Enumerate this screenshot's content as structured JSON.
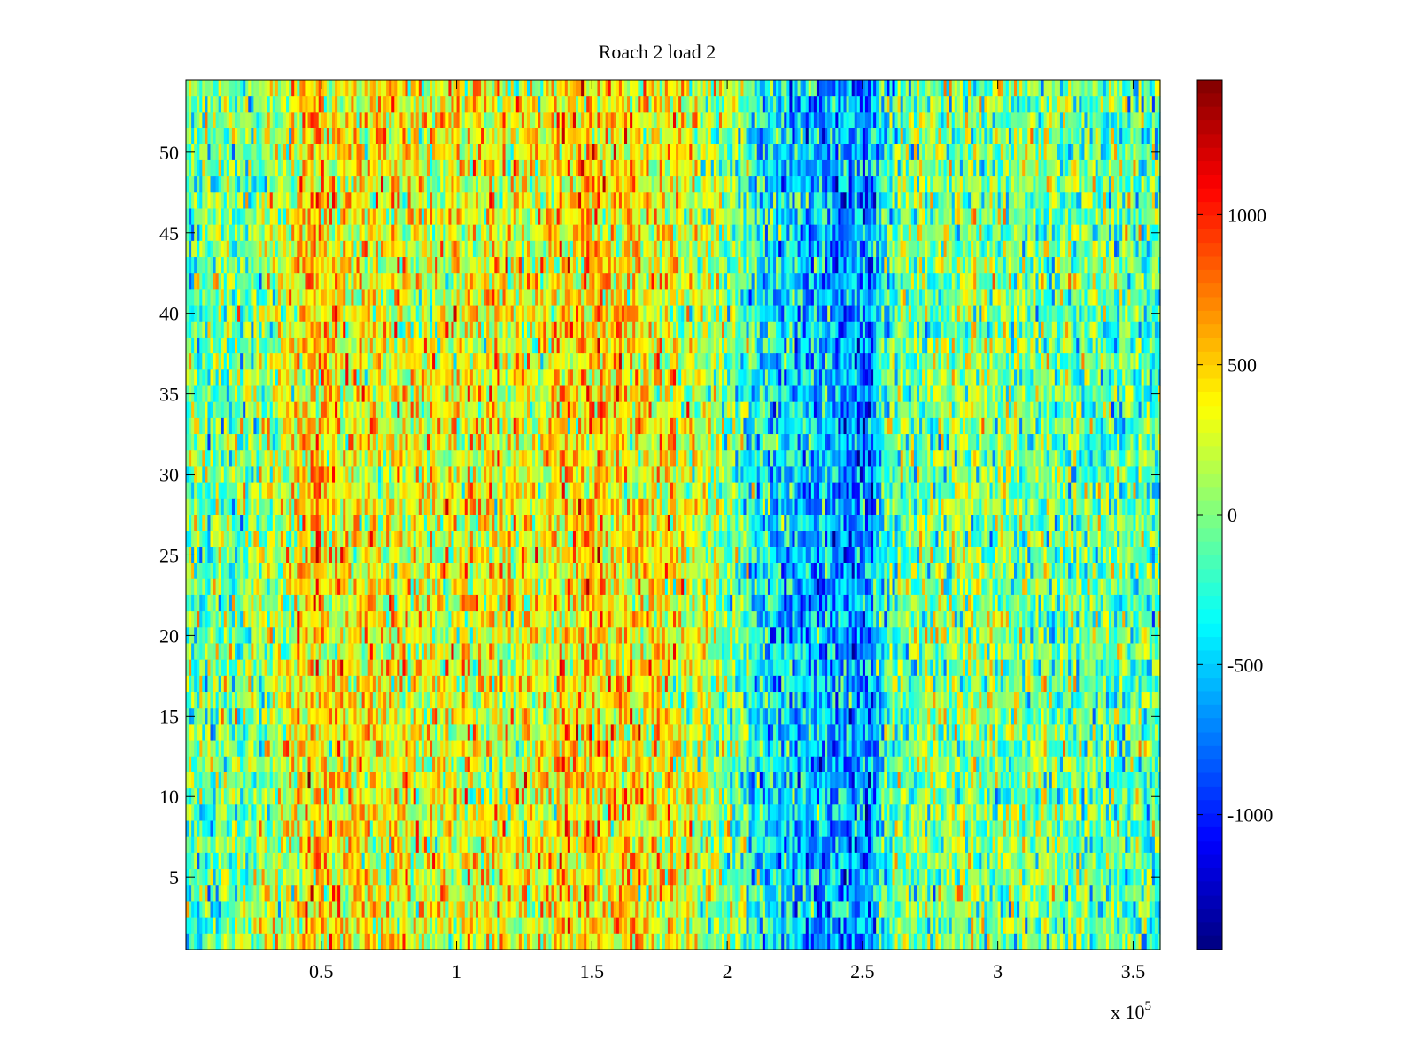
{
  "chart_data": {
    "type": "heatmap",
    "title": "Roach 2 load 2",
    "xlabel": "",
    "ylabel": "",
    "x_multiplier_label": "x 10",
    "x_multiplier_exponent": "5",
    "xlim": [
      0,
      3.6
    ],
    "x_scale": 100000,
    "ylim": [
      0.5,
      54.5
    ],
    "rows": 54,
    "columns": 360,
    "xticks": [
      0.5,
      1,
      1.5,
      2,
      2.5,
      3,
      3.5
    ],
    "xtick_labels": [
      "0.5",
      "1",
      "1.5",
      "2",
      "2.5",
      "3",
      "3.5"
    ],
    "yticks": [
      5,
      10,
      15,
      20,
      25,
      30,
      35,
      40,
      45,
      50
    ],
    "ytick_labels": [
      "5",
      "10",
      "15",
      "20",
      "25",
      "30",
      "35",
      "40",
      "45",
      "50"
    ],
    "colorbar": {
      "colormap": "jet",
      "clim": [
        -1450,
        1450
      ],
      "ticks": [
        1000,
        500,
        0,
        -500,
        -1000
      ],
      "tick_labels": [
        "1000",
        "500",
        "0",
        "-500",
        "-1000"
      ]
    },
    "column_profile": [
      {
        "x": 0.0,
        "mean": -120
      },
      {
        "x": 0.1,
        "mean": -60
      },
      {
        "x": 0.2,
        "mean": 0
      },
      {
        "x": 0.3,
        "mean": 80
      },
      {
        "x": 0.4,
        "mean": 260
      },
      {
        "x": 0.47,
        "mean": 560
      },
      {
        "x": 0.55,
        "mean": 380
      },
      {
        "x": 0.7,
        "mean": 330
      },
      {
        "x": 0.9,
        "mean": 300
      },
      {
        "x": 1.1,
        "mean": 310
      },
      {
        "x": 1.3,
        "mean": 300
      },
      {
        "x": 1.4,
        "mean": 420
      },
      {
        "x": 1.5,
        "mean": 480
      },
      {
        "x": 1.65,
        "mean": 420
      },
      {
        "x": 1.8,
        "mean": 310
      },
      {
        "x": 1.95,
        "mean": 130
      },
      {
        "x": 2.05,
        "mean": -100
      },
      {
        "x": 2.15,
        "mean": -400
      },
      {
        "x": 2.3,
        "mean": -520
      },
      {
        "x": 2.45,
        "mean": -640
      },
      {
        "x": 2.53,
        "mean": -780
      },
      {
        "x": 2.56,
        "mean": -330
      },
      {
        "x": 2.65,
        "mean": -20
      },
      {
        "x": 2.9,
        "mean": 40
      },
      {
        "x": 3.1,
        "mean": 0
      },
      {
        "x": 3.3,
        "mean": -60
      },
      {
        "x": 3.45,
        "mean": -90
      },
      {
        "x": 3.6,
        "mean": -120
      }
    ],
    "noise_amplitude": 330,
    "grid": false,
    "legend": "colorbar-right"
  }
}
